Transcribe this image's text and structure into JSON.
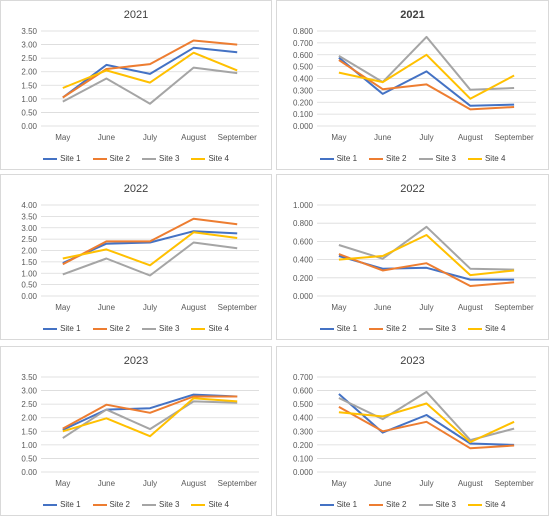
{
  "series_colors": {
    "Site 1": "#4472C4",
    "Site 2": "#ED7D31",
    "Site 3": "#A5A5A5",
    "Site 4": "#FFC000"
  },
  "chart_data": [
    {
      "type": "line",
      "title": "2021",
      "title_bold": false,
      "categories": [
        "May",
        "June",
        "July",
        "August",
        "September"
      ],
      "yticks": [
        "0.00",
        "0.50",
        "1.00",
        "1.50",
        "2.00",
        "2.50",
        "3.00",
        "3.50"
      ],
      "ylim": [
        0,
        3.5
      ],
      "legend": "bottom",
      "grid": true,
      "series": [
        {
          "name": "Site 1",
          "values": [
            1.05,
            2.25,
            1.92,
            2.88,
            2.72
          ]
        },
        {
          "name": "Site 2",
          "values": [
            1.05,
            2.1,
            2.28,
            3.15,
            3.0
          ]
        },
        {
          "name": "Site 3",
          "values": [
            0.9,
            1.75,
            0.82,
            2.15,
            1.95
          ]
        },
        {
          "name": "Site 4",
          "values": [
            1.4,
            2.05,
            1.6,
            2.7,
            2.05
          ]
        }
      ]
    },
    {
      "type": "line",
      "title": "2021",
      "title_bold": true,
      "categories": [
        "May",
        "June",
        "July",
        "August",
        "September"
      ],
      "yticks": [
        "0.000",
        "0.100",
        "0.200",
        "0.300",
        "0.400",
        "0.500",
        "0.600",
        "0.700",
        "0.800"
      ],
      "ylim": [
        0,
        0.8
      ],
      "legend": "bottom",
      "grid": true,
      "series": [
        {
          "name": "Site 1",
          "values": [
            0.575,
            0.27,
            0.46,
            0.17,
            0.18
          ]
        },
        {
          "name": "Site 2",
          "values": [
            0.555,
            0.31,
            0.35,
            0.14,
            0.16
          ]
        },
        {
          "name": "Site 3",
          "values": [
            0.59,
            0.37,
            0.75,
            0.305,
            0.32
          ]
        },
        {
          "name": "Site 4",
          "values": [
            0.45,
            0.37,
            0.6,
            0.23,
            0.425
          ]
        }
      ]
    },
    {
      "type": "line",
      "title": "2022",
      "title_bold": false,
      "categories": [
        "May",
        "June",
        "July",
        "August",
        "September"
      ],
      "yticks": [
        "0.00",
        "0.50",
        "1.00",
        "1.50",
        "2.00",
        "2.50",
        "3.00",
        "3.50",
        "4.00"
      ],
      "ylim": [
        0,
        4.0
      ],
      "legend": "bottom",
      "grid": true,
      "series": [
        {
          "name": "Site 1",
          "values": [
            1.45,
            2.3,
            2.35,
            2.85,
            2.75
          ]
        },
        {
          "name": "Site 2",
          "values": [
            1.4,
            2.4,
            2.4,
            3.4,
            3.15
          ]
        },
        {
          "name": "Site 3",
          "values": [
            0.95,
            1.65,
            0.9,
            2.35,
            2.1
          ]
        },
        {
          "name": "Site 4",
          "values": [
            1.65,
            2.05,
            1.35,
            2.8,
            2.55
          ]
        }
      ]
    },
    {
      "type": "line",
      "title": "2022",
      "title_bold": false,
      "categories": [
        "May",
        "June",
        "July",
        "August",
        "September"
      ],
      "yticks": [
        "0.000",
        "0.200",
        "0.400",
        "0.600",
        "0.800",
        "1.000"
      ],
      "ylim": [
        0,
        1.0
      ],
      "legend": "bottom",
      "grid": true,
      "series": [
        {
          "name": "Site 1",
          "values": [
            0.44,
            0.3,
            0.31,
            0.18,
            0.18
          ]
        },
        {
          "name": "Site 2",
          "values": [
            0.46,
            0.28,
            0.36,
            0.11,
            0.15
          ]
        },
        {
          "name": "Site 3",
          "values": [
            0.56,
            0.41,
            0.76,
            0.3,
            0.29
          ]
        },
        {
          "name": "Site 4",
          "values": [
            0.4,
            0.44,
            0.67,
            0.23,
            0.28
          ]
        }
      ]
    },
    {
      "type": "line",
      "title": "2023",
      "title_bold": false,
      "categories": [
        "May",
        "June",
        "July",
        "August",
        "September"
      ],
      "yticks": [
        "0.00",
        "0.50",
        "1.00",
        "1.50",
        "2.00",
        "2.50",
        "3.00",
        "3.50"
      ],
      "ylim": [
        0,
        3.5
      ],
      "legend": "bottom",
      "grid": true,
      "series": [
        {
          "name": "Site 1",
          "values": [
            1.55,
            2.3,
            2.35,
            2.85,
            2.78
          ]
        },
        {
          "name": "Site 2",
          "values": [
            1.6,
            2.48,
            2.18,
            2.78,
            2.78
          ]
        },
        {
          "name": "Site 3",
          "values": [
            1.25,
            2.3,
            1.58,
            2.6,
            2.55
          ]
        },
        {
          "name": "Site 4",
          "values": [
            1.5,
            1.98,
            1.32,
            2.72,
            2.6
          ]
        }
      ]
    },
    {
      "type": "line",
      "title": "2023",
      "title_bold": false,
      "categories": [
        "May",
        "June",
        "July",
        "August",
        "September"
      ],
      "yticks": [
        "0.000",
        "0.100",
        "0.200",
        "0.300",
        "0.400",
        "0.500",
        "0.600",
        "0.700"
      ],
      "ylim": [
        0,
        0.7
      ],
      "legend": "bottom",
      "grid": true,
      "series": [
        {
          "name": "Site 1",
          "values": [
            0.575,
            0.29,
            0.42,
            0.21,
            0.2
          ]
        },
        {
          "name": "Site 2",
          "values": [
            0.48,
            0.3,
            0.37,
            0.175,
            0.195
          ]
        },
        {
          "name": "Site 3",
          "values": [
            0.545,
            0.39,
            0.59,
            0.235,
            0.32
          ]
        },
        {
          "name": "Site 4",
          "values": [
            0.44,
            0.41,
            0.505,
            0.22,
            0.37
          ]
        }
      ]
    }
  ]
}
